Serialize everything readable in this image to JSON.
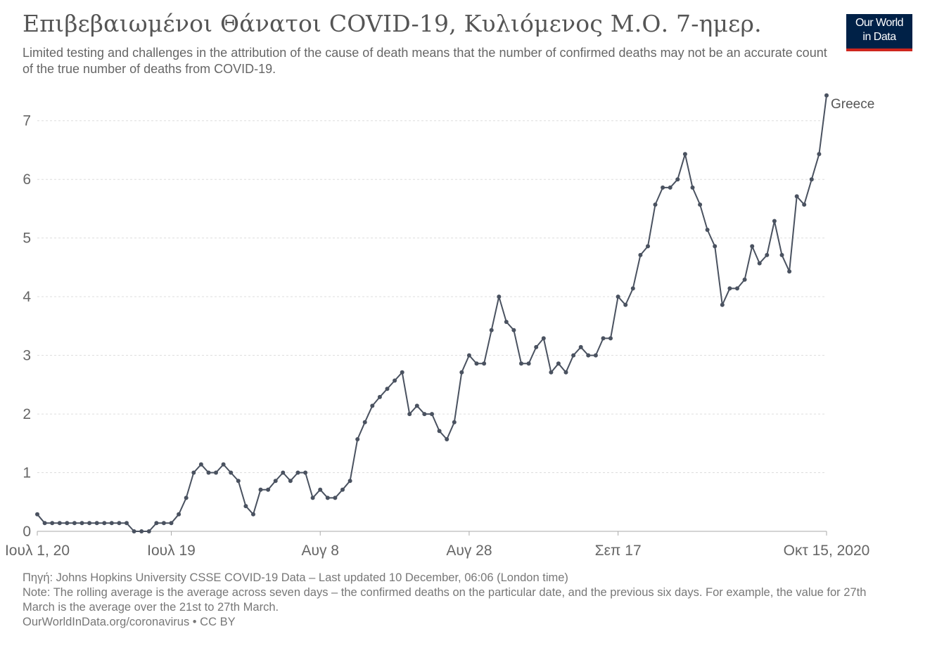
{
  "title": "Επιβεβαιωμένοι Θάνατοι COVID-19, Κυλιόμενος Μ.Ο. 7-ημερ.",
  "subtitle": "Limited testing and challenges in the attribution of the cause of death means that the number of confirmed deaths may not be an accurate count of the true number of deaths from COVID-19.",
  "logo": {
    "line1": "Our World",
    "line2": "in Data",
    "bg_color": "#002147",
    "accent_color": "#ce261e"
  },
  "footer": {
    "source": "Πηγή: Johns Hopkins University CSSE COVID-19 Data – Last updated 10 December, 06:06 (London time)",
    "note": "Note: The rolling average is the average across seven days – the confirmed deaths on the particular date, and the previous six days. For example, the value for 27th March is the average over the 21st to 27th March.",
    "url": "OurWorldInData.org/coronavirus • CC BY"
  },
  "chart_data": {
    "type": "line",
    "x_start": "2020-07-01",
    "x_end": "2020-10-15",
    "x_tick_labels": [
      "Ιουλ 1, 20",
      "Ιουλ 19",
      "Αυγ 8",
      "Αυγ 28",
      "Σεπ 17",
      "Οκτ 15, 2020"
    ],
    "x_tick_dates": [
      "2020-07-01",
      "2020-07-19",
      "2020-08-08",
      "2020-08-28",
      "2020-09-17",
      "2020-10-15"
    ],
    "y_ticks": [
      0,
      1,
      2,
      3,
      4,
      5,
      6,
      7
    ],
    "ylim": [
      0,
      7.5
    ],
    "grid": true,
    "line_color": "#4a5260",
    "series": [
      {
        "name": "Greece",
        "dates": [
          "2020-07-01",
          "2020-07-02",
          "2020-07-03",
          "2020-07-04",
          "2020-07-05",
          "2020-07-06",
          "2020-07-07",
          "2020-07-08",
          "2020-07-09",
          "2020-07-10",
          "2020-07-11",
          "2020-07-12",
          "2020-07-13",
          "2020-07-14",
          "2020-07-15",
          "2020-07-16",
          "2020-07-17",
          "2020-07-18",
          "2020-07-19",
          "2020-07-20",
          "2020-07-21",
          "2020-07-22",
          "2020-07-23",
          "2020-07-24",
          "2020-07-25",
          "2020-07-26",
          "2020-07-27",
          "2020-07-28",
          "2020-07-29",
          "2020-07-30",
          "2020-07-31",
          "2020-08-01",
          "2020-08-02",
          "2020-08-03",
          "2020-08-04",
          "2020-08-05",
          "2020-08-06",
          "2020-08-07",
          "2020-08-08",
          "2020-08-09",
          "2020-08-10",
          "2020-08-11",
          "2020-08-12",
          "2020-08-13",
          "2020-08-14",
          "2020-08-15",
          "2020-08-16",
          "2020-08-17",
          "2020-08-18",
          "2020-08-19",
          "2020-08-20",
          "2020-08-21",
          "2020-08-22",
          "2020-08-23",
          "2020-08-24",
          "2020-08-25",
          "2020-08-26",
          "2020-08-27",
          "2020-08-28",
          "2020-08-29",
          "2020-08-30",
          "2020-08-31",
          "2020-09-01",
          "2020-09-02",
          "2020-09-03",
          "2020-09-04",
          "2020-09-05",
          "2020-09-06",
          "2020-09-07",
          "2020-09-08",
          "2020-09-09",
          "2020-09-10",
          "2020-09-11",
          "2020-09-12",
          "2020-09-13",
          "2020-09-14",
          "2020-09-15",
          "2020-09-16",
          "2020-09-17",
          "2020-09-18",
          "2020-09-19",
          "2020-09-20",
          "2020-09-21",
          "2020-09-22",
          "2020-09-23",
          "2020-09-24",
          "2020-09-25",
          "2020-09-26",
          "2020-09-27",
          "2020-09-28",
          "2020-09-29",
          "2020-09-30",
          "2020-10-01",
          "2020-10-02",
          "2020-10-03",
          "2020-10-04",
          "2020-10-05",
          "2020-10-06",
          "2020-10-07",
          "2020-10-08",
          "2020-10-09",
          "2020-10-10",
          "2020-10-11",
          "2020-10-12",
          "2020-10-13",
          "2020-10-14",
          "2020-10-15"
        ],
        "values": [
          0.29,
          0.14,
          0.14,
          0.14,
          0.14,
          0.14,
          0.14,
          0.14,
          0.14,
          0.14,
          0.14,
          0.14,
          0.14,
          0.0,
          0.0,
          0.0,
          0.14,
          0.14,
          0.14,
          0.29,
          0.57,
          1.0,
          1.14,
          1.0,
          1.0,
          1.14,
          1.0,
          0.86,
          0.43,
          0.29,
          0.71,
          0.71,
          0.86,
          1.0,
          0.86,
          1.0,
          1.0,
          0.57,
          0.71,
          0.57,
          0.57,
          0.71,
          0.86,
          1.57,
          1.86,
          2.14,
          2.29,
          2.43,
          2.57,
          2.71,
          2.0,
          2.14,
          2.0,
          2.0,
          1.71,
          1.57,
          1.86,
          2.71,
          3.0,
          2.86,
          2.86,
          3.43,
          4.0,
          3.57,
          3.43,
          2.86,
          2.86,
          3.14,
          3.29,
          2.71,
          2.86,
          2.71,
          3.0,
          3.14,
          3.0,
          3.0,
          3.29,
          3.29,
          4.0,
          3.86,
          4.14,
          4.71,
          4.86,
          5.57,
          5.86,
          5.86,
          6.0,
          6.43,
          5.86,
          5.57,
          5.14,
          4.86,
          3.86,
          4.14,
          4.14,
          4.29,
          4.86,
          4.57,
          4.71,
          5.29,
          4.71,
          4.43,
          5.71,
          5.57,
          6.0,
          6.43,
          7.43
        ]
      }
    ]
  }
}
